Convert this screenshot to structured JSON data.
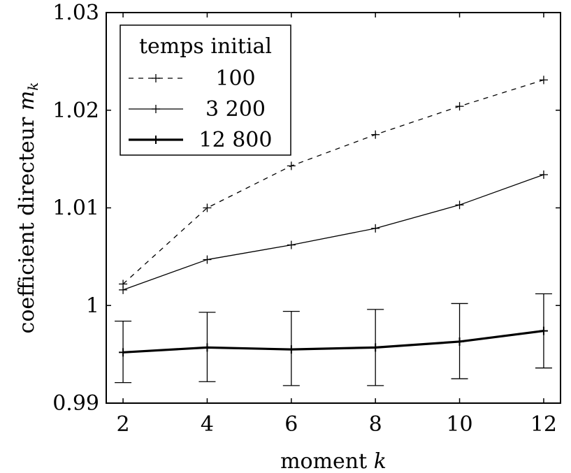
{
  "chart_data": {
    "type": "line",
    "xlabel": "moment",
    "xlabel_var": "k",
    "ylabel": "coefficient directeur",
    "ylabel_var": "m",
    "ylabel_sub": "k",
    "x": [
      2,
      4,
      6,
      8,
      10,
      12
    ],
    "xlim": [
      1.6,
      12.4
    ],
    "ylim": [
      0.99,
      1.03
    ],
    "x_ticks": [
      2,
      4,
      6,
      8,
      10,
      12
    ],
    "x_tick_labels": [
      "2",
      "4",
      "6",
      "8",
      "10",
      "12"
    ],
    "y_ticks": [
      0.99,
      1.0,
      1.01,
      1.02,
      1.03
    ],
    "y_tick_labels": [
      "0.99",
      "1",
      "1.01",
      "1.02",
      "1.03"
    ],
    "grid": false,
    "legend": {
      "title": "temps initial",
      "placement": "top-left"
    },
    "series": [
      {
        "name": "100",
        "style": "dashed",
        "values": [
          1.0022,
          1.01,
          1.0143,
          1.0175,
          1.0204,
          1.0231
        ]
      },
      {
        "name": "3 200",
        "style": "solid",
        "values": [
          1.0016,
          1.0047,
          1.0062,
          1.0079,
          1.0103,
          1.0134
        ]
      },
      {
        "name": "12 800",
        "style": "thick",
        "values": [
          0.9952,
          0.9957,
          0.9955,
          0.9957,
          0.9963,
          0.9974
        ],
        "error_low": [
          0.9921,
          0.9922,
          0.9918,
          0.9918,
          0.9925,
          0.9936
        ],
        "error_high": [
          0.9984,
          0.9993,
          0.9994,
          0.9996,
          1.0002,
          1.0012
        ]
      }
    ]
  }
}
